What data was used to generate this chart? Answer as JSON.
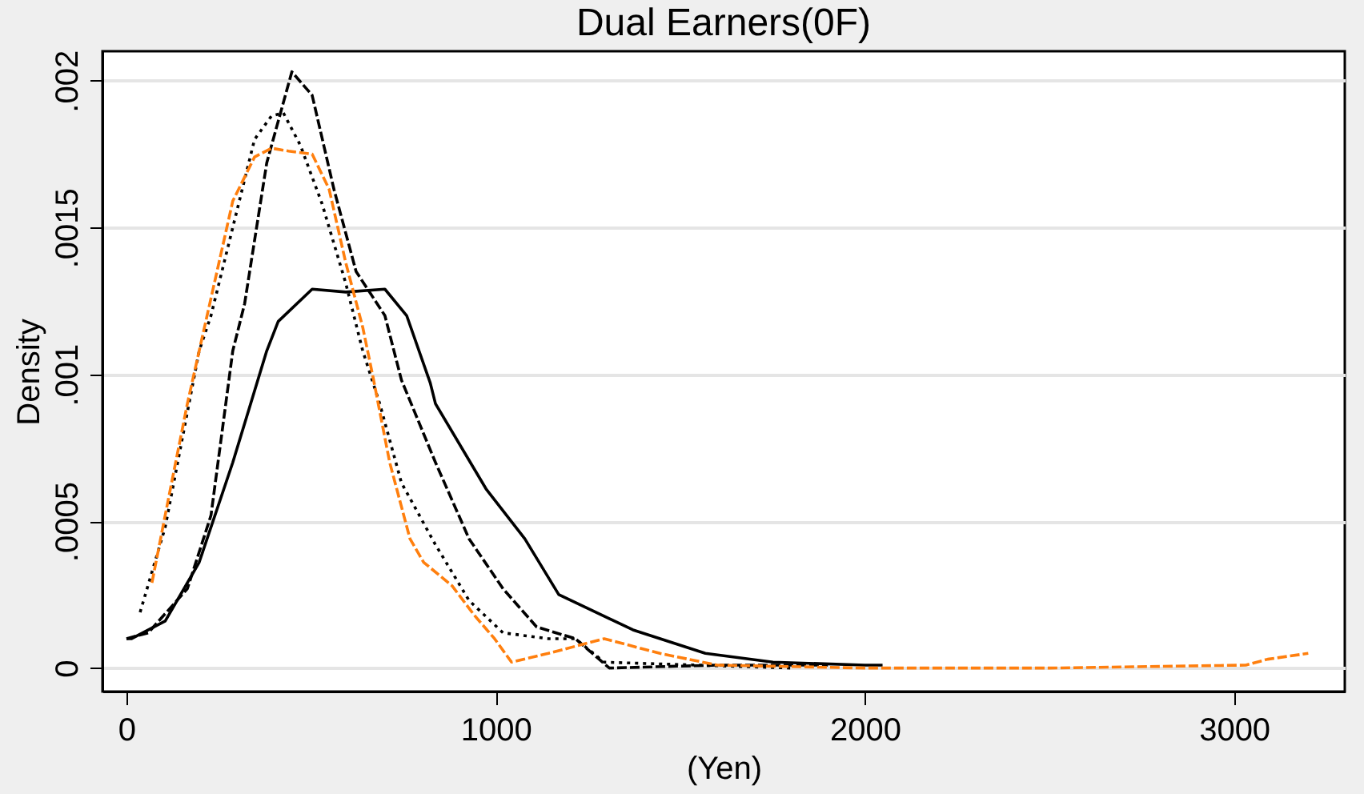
{
  "chart_data": {
    "type": "line",
    "title": "Dual Earners(0F)",
    "xlabel": "(Yen)",
    "ylabel": "Density",
    "xlim": [
      -65,
      3300
    ],
    "ylim": [
      -8e-05,
      0.0021
    ],
    "xticks": [
      0,
      1000,
      2000,
      3000
    ],
    "yticks": [
      0,
      {
        "value": 0.0005,
        "label": ".0005"
      },
      {
        "value": 0.001,
        "label": ".001"
      },
      {
        "value": 0.0015,
        "label": ".0015"
      },
      {
        "value": 0.002,
        "label": ".002"
      }
    ],
    "grid": "y",
    "marker": "none",
    "series": [
      {
        "color": "#000000",
        "line_style": "solid",
        "x": [
          0,
          14,
          105,
          197,
          288,
          380,
          411,
          503,
          594,
          700,
          759,
          823,
          837,
          974,
          1079,
          1171,
          1372,
          1568,
          1751,
          2000,
          2048
        ],
        "values": [
          0.0001,
          0.0001,
          0.00016,
          0.00036,
          0.0007,
          0.00108,
          0.00118,
          0.00129,
          0.00128,
          0.00129,
          0.0012,
          0.00097,
          0.0009,
          0.00061,
          0.00044,
          0.00025,
          0.00013,
          5e-05,
          2e-05,
          1e-05,
          1e-05
        ]
      },
      {
        "color": "#000000",
        "line_style": "dashed",
        "x": [
          0,
          59,
          165,
          229,
          288,
          320,
          380,
          448,
          503,
          562,
          622,
          700,
          745,
          837,
          928,
          1020,
          1111,
          1216,
          1308,
          1600,
          1900
        ],
        "values": [
          0.0001,
          0.00012,
          0.00027,
          0.00052,
          0.00108,
          0.00124,
          0.00172,
          0.00203,
          0.00195,
          0.00163,
          0.00135,
          0.0012,
          0.00098,
          0.0007,
          0.00044,
          0.00027,
          0.00014,
          0.0001,
          0.0,
          1e-05,
          1e-05
        ]
      },
      {
        "color": "#000000",
        "line_style": "dotted",
        "x": [
          37,
          105,
          197,
          229,
          347,
          393,
          425,
          471,
          530,
          594,
          640,
          686,
          745,
          837,
          928,
          1020,
          1143,
          1216,
          1294,
          1800
        ],
        "values": [
          0.00019,
          0.00048,
          0.00108,
          0.0012,
          0.0018,
          0.00188,
          0.00189,
          0.00178,
          0.00158,
          0.00131,
          0.00108,
          0.0009,
          0.00063,
          0.00042,
          0.00023,
          0.00012,
          0.0001,
          0.0001,
          2e-05,
          0.0
        ]
      },
      {
        "color": "#ff7f0e",
        "line_style": "dashed",
        "x": [
          69,
          119,
          165,
          197,
          288,
          347,
          393,
          439,
          503,
          549,
          594,
          640,
          668,
          713,
          768,
          805,
          882,
          942,
          997,
          1043,
          1143,
          1294,
          1445,
          1600,
          2000,
          2500,
          3032,
          3091,
          3201
        ],
        "values": [
          0.00029,
          0.00061,
          0.0009,
          0.00108,
          0.00159,
          0.00174,
          0.00177,
          0.00176,
          0.00175,
          0.00163,
          0.00138,
          0.00116,
          0.00099,
          0.0007,
          0.00044,
          0.00036,
          0.00028,
          0.00018,
          0.0001,
          2e-05,
          5e-05,
          0.0001,
          5e-05,
          1e-05,
          0.0,
          0.0,
          1e-05,
          3e-05,
          5e-05
        ]
      }
    ]
  }
}
